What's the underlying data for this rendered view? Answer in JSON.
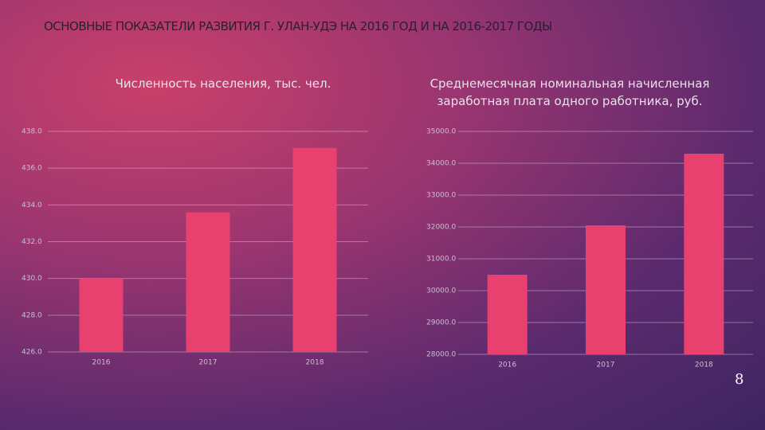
{
  "title": "ОСНОВНЫЕ ПОКАЗАТЕЛИ РАЗВИТИЯ Г. УЛАН-УДЭ НА 2016 ГОД И НА 2016-2017 ГОДЫ",
  "page_number": "8",
  "chart_data": [
    {
      "type": "bar",
      "title": "Численность населения, тыс. чел.",
      "categories": [
        "2016",
        "2017",
        "2018"
      ],
      "values": [
        430.0,
        433.6,
        437.1
      ],
      "color": "#e8416f",
      "ylim": [
        426,
        438
      ],
      "yticks": [
        {
          "value": 426,
          "label": "426.0"
        },
        {
          "value": 428,
          "label": "428.0"
        },
        {
          "value": 430,
          "label": "430.0"
        },
        {
          "value": 432,
          "label": "432.0"
        },
        {
          "value": 434,
          "label": "434.0"
        },
        {
          "value": 436,
          "label": "436.0"
        },
        {
          "value": 438,
          "label": "438.0"
        }
      ],
      "grid": true
    },
    {
      "type": "bar",
      "title": "Среднемесячная номинальная начисленная заработная плата одного работника, руб.",
      "categories": [
        "2016",
        "2017",
        "2018"
      ],
      "values": [
        30500,
        32050,
        34300
      ],
      "color": "#e8416f",
      "ylim": [
        28000,
        35000
      ],
      "yticks": [
        {
          "value": 28000,
          "label": "28000.0"
        },
        {
          "value": 29000,
          "label": "29000.0"
        },
        {
          "value": 30000,
          "label": "30000.0"
        },
        {
          "value": 31000,
          "label": "31000.0"
        },
        {
          "value": 32000,
          "label": "32000.0"
        },
        {
          "value": 33000,
          "label": "33000.0"
        },
        {
          "value": 34000,
          "label": "34000.0"
        },
        {
          "value": 35000,
          "label": "35000.0"
        }
      ],
      "grid": true
    }
  ]
}
